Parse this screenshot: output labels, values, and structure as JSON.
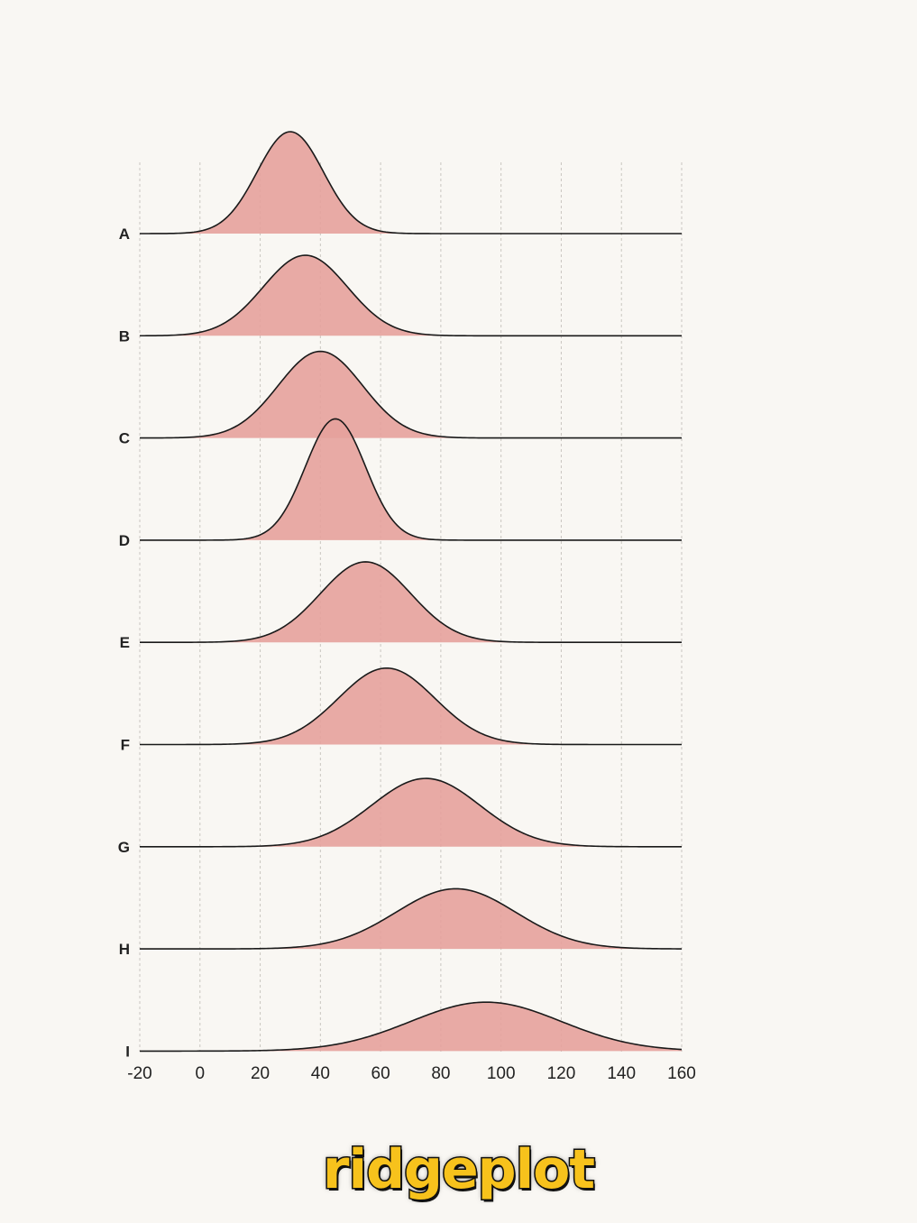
{
  "caption": "ridgeplot",
  "colors": {
    "fill": "#e6a19c",
    "line": "#1a1a1a",
    "background": "#f9f7f3"
  },
  "chart_data": {
    "type": "area",
    "variant": "ridgeline",
    "title": "",
    "xlabel": "",
    "ylabel": "",
    "xlim": [
      -20,
      160
    ],
    "xticks": [
      -20,
      0,
      20,
      40,
      60,
      80,
      100,
      120,
      140,
      160
    ],
    "grid": "vertical dashed",
    "series": [
      {
        "name": "A",
        "mean": 30,
        "sd": 11,
        "peak": 1.0
      },
      {
        "name": "B",
        "mean": 35,
        "sd": 14,
        "peak": 0.79
      },
      {
        "name": "C",
        "mean": 40,
        "sd": 14,
        "peak": 0.85
      },
      {
        "name": "D",
        "mean": 45,
        "sd": 10,
        "peak": 1.19
      },
      {
        "name": "E",
        "mean": 55,
        "sd": 15,
        "peak": 0.79
      },
      {
        "name": "F",
        "mean": 62,
        "sd": 16,
        "peak": 0.75
      },
      {
        "name": "G",
        "mean": 75,
        "sd": 18,
        "peak": 0.67
      },
      {
        "name": "H",
        "mean": 85,
        "sd": 20,
        "peak": 0.59
      },
      {
        "name": "I",
        "mean": 95,
        "sd": 25,
        "peak": 0.48
      }
    ]
  }
}
